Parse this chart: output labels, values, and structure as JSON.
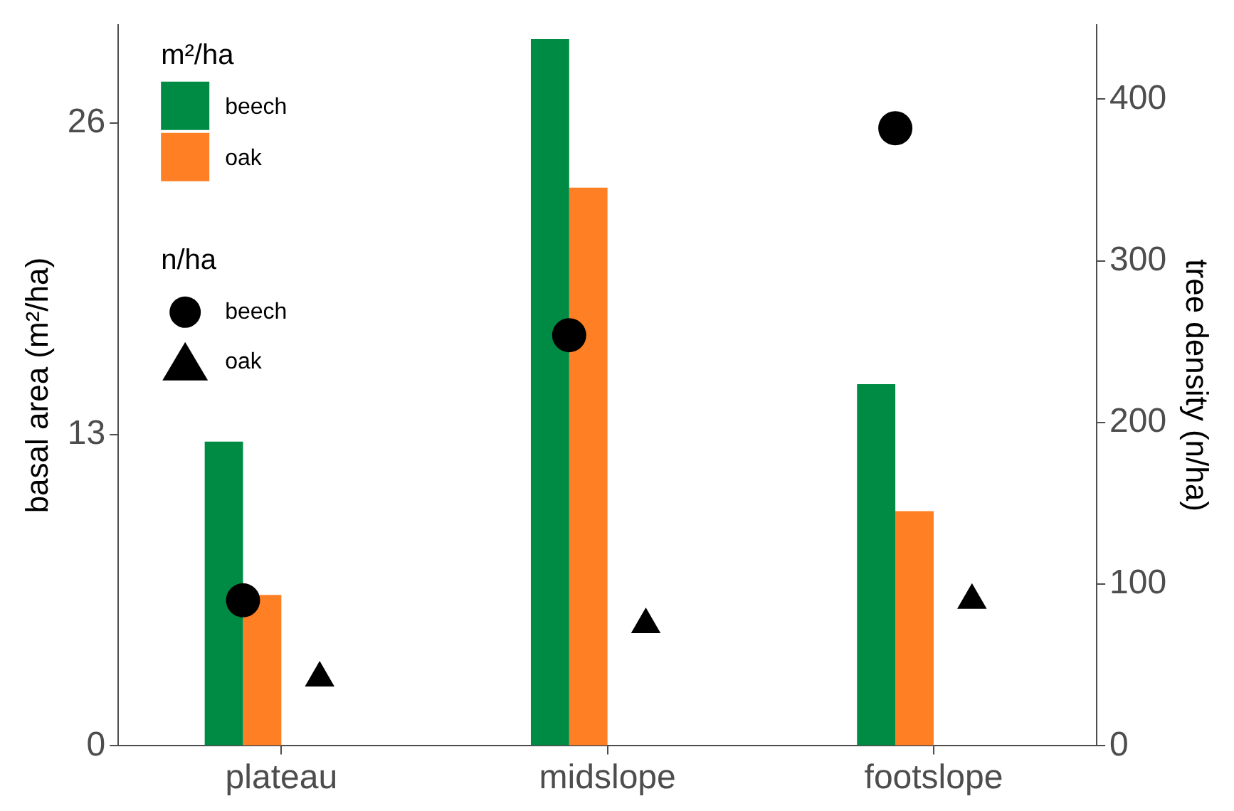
{
  "chart_data": {
    "type": "bar",
    "categories": [
      "plateau",
      "midslope",
      "footslope"
    ],
    "ylabel": "basal area (m²/ha)",
    "y2label": "tree density (n/ha)",
    "legend_title": [
      "m²/ha",
      "n/ha"
    ],
    "series": [
      {
        "name": "beech",
        "color": "#008b45",
        "values": [
          12.7,
          29.5,
          15.1
        ]
      },
      {
        "name": "oak",
        "color": "#ff7f24",
        "values": [
          6.3,
          23.3,
          9.8
        ]
      },
      {
        "name": "beech",
        "type": "scatter",
        "axis": "y2",
        "marker": "circle",
        "color": "#000000",
        "x": [
          "plateau",
          "midslope",
          "footslope"
        ],
        "values": [
          90,
          254,
          382
        ]
      },
      {
        "name": "oak",
        "type": "scatter",
        "axis": "y2",
        "marker": "triangle",
        "color": "#000000",
        "x": [
          "plateau",
          "midslope",
          "footslope"
        ],
        "values": [
          42,
          75,
          90
        ]
      }
    ],
    "ylim": [
      0,
      30.1
    ],
    "yticks": [
      0,
      13,
      26
    ],
    "y2lim": [
      0,
      446
    ],
    "y2ticks": [
      0,
      100,
      200,
      300,
      400
    ],
    "grid": false,
    "legend": "top left"
  }
}
